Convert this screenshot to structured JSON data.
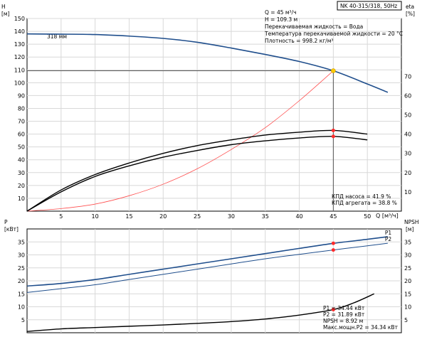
{
  "chart_data": [
    {
      "type": "line",
      "panel": "top",
      "title_box": "NK 40-315/318, 50Hz",
      "ylabel_left": "H",
      "ylabel_left_unit": "[м]",
      "ylabel_right": "eta",
      "ylabel_right_unit": "[%]",
      "xlabel": "Q [м³/ч]",
      "xlim": [
        0,
        55
      ],
      "ylim_left": [
        0,
        150
      ],
      "ylim_right": [
        0,
        100
      ],
      "x_ticks": [
        5,
        10,
        15,
        20,
        25,
        30,
        35,
        40,
        45,
        50
      ],
      "y_ticks_left": [
        10,
        20,
        30,
        40,
        50,
        60,
        70,
        80,
        90,
        100,
        110,
        120,
        130,
        140,
        150
      ],
      "y_ticks_right": [
        10,
        20,
        30,
        40,
        50,
        60,
        70
      ],
      "impeller_label": "318 мм",
      "info_lines": [
        "Q = 45 м³/ч",
        "H = 109.3 м",
        "Перекачиваемая жидкость = Вода",
        "Температура перекачиваемой жидкости = 20 °C",
        "Плотность = 998.2 кг/м³"
      ],
      "eff_lines": [
        "КПД насоса = 41.9 %",
        "КПД агрегата = 38.8 %"
      ],
      "duty_point": {
        "q": 45,
        "h": 109.3,
        "eta_pump": 41.9,
        "eta_unit": 38.8
      },
      "series": [
        {
          "key": "head",
          "color": "#1f4e8c",
          "x": [
            0,
            5,
            10,
            15,
            20,
            25,
            30,
            35,
            40,
            45,
            50,
            53
          ],
          "y": [
            138,
            137.8,
            137.5,
            136.3,
            134.5,
            131.5,
            127,
            122,
            116.5,
            109.3,
            99,
            92.5
          ]
        },
        {
          "key": "system",
          "color": "#ff4d4d",
          "x": [
            0,
            5,
            10,
            15,
            20,
            25,
            30,
            35,
            40,
            45
          ],
          "y": [
            0,
            2,
            5.5,
            12,
            21,
            33,
            48,
            65,
            86,
            109.3
          ]
        },
        {
          "key": "eta_pump",
          "color": "#000000",
          "x": [
            0,
            5,
            10,
            15,
            20,
            25,
            30,
            35,
            40,
            45,
            50
          ],
          "y": [
            0,
            11,
            19,
            25,
            30,
            34,
            37,
            39.5,
            41,
            41.9,
            40
          ]
        },
        {
          "key": "eta_unit",
          "color": "#000000",
          "x": [
            0,
            5,
            10,
            15,
            20,
            25,
            30,
            35,
            40,
            45,
            50
          ],
          "y": [
            0,
            10,
            18,
            23.5,
            28,
            31.5,
            34.5,
            36.5,
            38,
            38.8,
            37
          ]
        }
      ]
    },
    {
      "type": "line",
      "panel": "bottom",
      "ylabel_left": "P",
      "ylabel_left_unit": "[кВт]",
      "ylabel_right": "NPSH",
      "ylabel_right_unit": "[м]",
      "xlim": [
        0,
        55
      ],
      "ylim_left": [
        0,
        40
      ],
      "ylim_right": [
        0,
        40
      ],
      "y_ticks_left": [
        5,
        10,
        15,
        20,
        25,
        30,
        35
      ],
      "y_ticks_right": [
        5,
        10,
        15,
        20,
        25,
        30,
        35
      ],
      "info_lines": [
        "P1 = 34.44 кВт",
        "P2 = 31.89 кВт",
        "NPSH = 8.92 м",
        "Макс.мощн.P2 = 34.34 кВт"
      ],
      "series": [
        {
          "key": "P1",
          "name": "P1",
          "color": "#1f4e8c",
          "x": [
            0,
            5,
            10,
            15,
            20,
            25,
            30,
            35,
            40,
            45,
            50,
            53
          ],
          "y": [
            18,
            19,
            20.5,
            22.5,
            24.5,
            26.5,
            28.5,
            30.5,
            32.5,
            34.44,
            36,
            37
          ]
        },
        {
          "key": "P2",
          "name": "P2",
          "color": "#1f4e8c",
          "x": [
            0,
            5,
            10,
            15,
            20,
            25,
            30,
            35,
            40,
            45,
            50,
            53
          ],
          "y": [
            15.5,
            17,
            18.5,
            20.5,
            22.5,
            24.5,
            26.5,
            28.5,
            30.2,
            31.89,
            33.5,
            34.5
          ]
        },
        {
          "key": "NPSH",
          "color": "#000000",
          "x": [
            0,
            5,
            10,
            15,
            20,
            25,
            30,
            35,
            40,
            45,
            48,
            51
          ],
          "y": [
            0.5,
            1.5,
            2,
            2.5,
            3,
            3.6,
            4.3,
            5.3,
            6.8,
            8.92,
            11.5,
            15
          ]
        }
      ]
    }
  ]
}
